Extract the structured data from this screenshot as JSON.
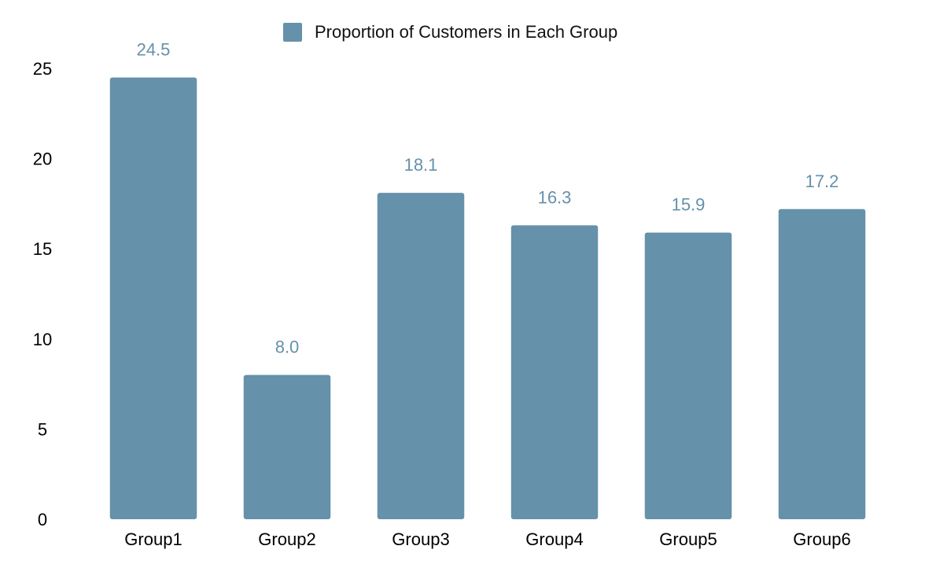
{
  "chart_data": {
    "type": "bar",
    "categories": [
      "Group1",
      "Group2",
      "Group3",
      "Group4",
      "Group5",
      "Group6"
    ],
    "series": [
      {
        "name": "Proportion of Customers in Each Group",
        "values": [
          24.5,
          8.0,
          18.1,
          16.3,
          15.9,
          17.2
        ],
        "data_labels": [
          "24.5",
          "8.0",
          "18.1",
          "16.3",
          "15.9",
          "17.2"
        ]
      }
    ],
    "title": "",
    "xlabel": "",
    "ylabel": "",
    "ylim": [
      0,
      25
    ],
    "yticks": [
      0,
      5,
      10,
      15,
      20,
      25
    ],
    "grid": false,
    "legend_position": "top-center",
    "colors": {
      "bar": "#6591aa",
      "data_label": "#6591aa",
      "text": "#000000"
    }
  }
}
